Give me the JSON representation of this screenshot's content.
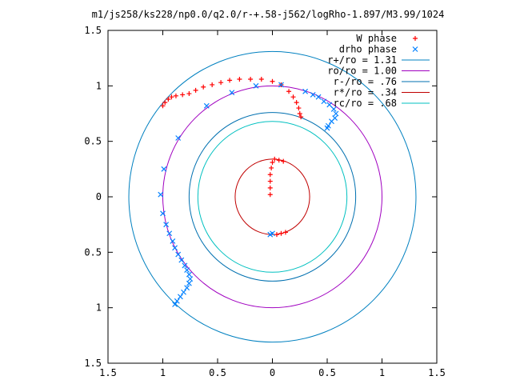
{
  "chart_data": {
    "type": "scatter",
    "title": "m1/js258/ks228/np0.0/q2.0/r-+.58-j562/logRho-1.897/M3.99/1024",
    "xlim": [
      -1.5,
      1.5
    ],
    "ylim": [
      -1.5,
      1.5
    ],
    "xticks": [
      -1.5,
      -1,
      -0.5,
      0,
      0.5,
      1,
      1.5
    ],
    "yticks": [
      1.5,
      1,
      0.5,
      0,
      -0.5,
      -1,
      -1.5
    ],
    "xtick_labels": [
      "1.5",
      "1",
      "0.5",
      "0",
      "0.5",
      "1",
      "1.5"
    ],
    "ytick_labels": [
      "1.5",
      "1",
      "0.5",
      "0",
      "0.5",
      "1",
      "1.5"
    ],
    "grid": false,
    "legend_position": "top-right",
    "circles": [
      {
        "label": "r+/ro = 1.31",
        "radius": 1.31,
        "color": "#0080c0"
      },
      {
        "label": "ro/ro = 1.00",
        "radius": 1.0,
        "color": "#a000c0"
      },
      {
        "label": "r-/ro = .76",
        "radius": 0.76,
        "color": "#0070b0"
      },
      {
        "label": "r*/ro = .34",
        "radius": 0.34,
        "color": "#c00000"
      },
      {
        "label": "rc/ro = .68",
        "radius": 0.68,
        "color": "#00c0c0"
      }
    ],
    "series": [
      {
        "name": "W phase",
        "marker": "+",
        "color": "#ff0000",
        "points": [
          [
            -1.0,
            0.82
          ],
          [
            -0.98,
            0.85
          ],
          [
            -0.95,
            0.88
          ],
          [
            -0.92,
            0.9
          ],
          [
            -0.88,
            0.91
          ],
          [
            -0.82,
            0.92
          ],
          [
            -0.76,
            0.93
          ],
          [
            -0.7,
            0.96
          ],
          [
            -0.63,
            0.99
          ],
          [
            -0.55,
            1.01
          ],
          [
            -0.47,
            1.03
          ],
          [
            -0.39,
            1.05
          ],
          [
            -0.3,
            1.06
          ],
          [
            -0.2,
            1.06
          ],
          [
            -0.1,
            1.06
          ],
          [
            0.0,
            1.04
          ],
          [
            0.08,
            1.01
          ],
          [
            0.15,
            0.95
          ],
          [
            0.19,
            0.9
          ],
          [
            0.22,
            0.85
          ],
          [
            0.24,
            0.8
          ],
          [
            0.25,
            0.75
          ],
          [
            0.26,
            0.72
          ],
          [
            -0.02,
            0.02
          ],
          [
            -0.02,
            0.08
          ],
          [
            -0.02,
            0.14
          ],
          [
            -0.02,
            0.2
          ],
          [
            -0.01,
            0.26
          ],
          [
            0.0,
            0.31
          ],
          [
            0.02,
            0.34
          ],
          [
            0.06,
            0.33
          ],
          [
            0.1,
            0.32
          ],
          [
            0.12,
            -0.32
          ],
          [
            0.08,
            -0.33
          ],
          [
            0.04,
            -0.34
          ]
        ]
      },
      {
        "name": "drho phase",
        "marker": "x",
        "color": "#0080ff",
        "points": [
          [
            0.3,
            0.95
          ],
          [
            0.37,
            0.92
          ],
          [
            0.42,
            0.9
          ],
          [
            0.47,
            0.86
          ],
          [
            0.52,
            0.83
          ],
          [
            0.56,
            0.79
          ],
          [
            0.58,
            0.75
          ],
          [
            0.57,
            0.71
          ],
          [
            0.54,
            0.68
          ],
          [
            0.51,
            0.64
          ],
          [
            0.5,
            0.62
          ],
          [
            0.08,
            1.01
          ],
          [
            -0.15,
            1.0
          ],
          [
            -0.37,
            0.94
          ],
          [
            -0.6,
            0.82
          ],
          [
            -0.86,
            0.53
          ],
          [
            -0.99,
            0.25
          ],
          [
            -1.02,
            0.02
          ],
          [
            -1.0,
            -0.15
          ],
          [
            -0.97,
            -0.25
          ],
          [
            -0.94,
            -0.33
          ],
          [
            -0.91,
            -0.4
          ],
          [
            -0.89,
            -0.46
          ],
          [
            -0.86,
            -0.52
          ],
          [
            -0.83,
            -0.57
          ],
          [
            -0.8,
            -0.62
          ],
          [
            -0.78,
            -0.66
          ],
          [
            -0.76,
            -0.7
          ],
          [
            -0.75,
            -0.74
          ],
          [
            -0.76,
            -0.78
          ],
          [
            -0.78,
            -0.82
          ],
          [
            -0.81,
            -0.86
          ],
          [
            -0.84,
            -0.9
          ],
          [
            -0.87,
            -0.94
          ],
          [
            -0.89,
            -0.97
          ],
          [
            -0.02,
            -0.34
          ],
          [
            0.0,
            -0.33
          ]
        ]
      }
    ]
  }
}
